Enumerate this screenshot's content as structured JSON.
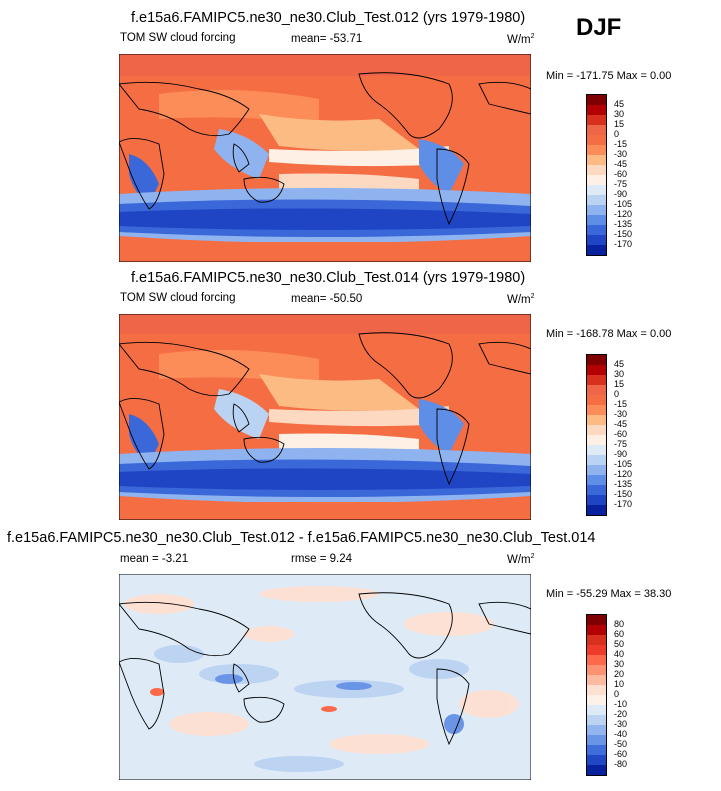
{
  "season": "DJF",
  "panels": [
    {
      "title": "f.e15a6.FAMIPC5.ne30_ne30.Club_Test.012 (yrs 1979-1980)",
      "variable": "TOM SW cloud forcing",
      "mean_text": "mean= -53.71",
      "units_text": "W/m",
      "units_exp": "2",
      "minmax_text": "Min = -171.75 Max =   0.00",
      "colorbar": {
        "labels": [
          "45",
          "30",
          "15",
          "0",
          "-15",
          "-30",
          "-45",
          "-60",
          "-75",
          "-90",
          "-105",
          "-120",
          "-135",
          "-150",
          "-170"
        ],
        "colors": [
          "#7f0000",
          "#b30000",
          "#d7301f",
          "#ef6548",
          "#f46d43",
          "#fc8d59",
          "#fdbb84",
          "#fdd9c2",
          "#fef0e4",
          "#deebf7",
          "#bad3f3",
          "#8fb3ef",
          "#5f8ee6",
          "#3b68d9",
          "#1f45c4",
          "#08219e"
        ]
      }
    },
    {
      "title": "f.e15a6.FAMIPC5.ne30_ne30.Club_Test.014 (yrs 1979-1980)",
      "variable": "TOM SW cloud forcing",
      "mean_text": "mean= -50.50",
      "units_text": "W/m",
      "units_exp": "2",
      "minmax_text": "Min = -168.78 Max =   0.00",
      "colorbar": {
        "labels": [
          "45",
          "30",
          "15",
          "0",
          "-15",
          "-30",
          "-45",
          "-60",
          "-75",
          "-90",
          "-105",
          "-120",
          "-135",
          "-150",
          "-170"
        ],
        "colors": [
          "#7f0000",
          "#b30000",
          "#d7301f",
          "#ef6548",
          "#f46d43",
          "#fc8d59",
          "#fdbb84",
          "#fdd9c2",
          "#fef0e4",
          "#deebf7",
          "#bad3f3",
          "#8fb3ef",
          "#5f8ee6",
          "#3b68d9",
          "#1f45c4",
          "#08219e"
        ]
      }
    },
    {
      "title": "f.e15a6.FAMIPC5.ne30_ne30.Club_Test.012 - f.e15a6.FAMIPC5.ne30_ne30.Club_Test.014",
      "mean_text": "mean =  -3.21",
      "rmse_text": "rmse =   9.24",
      "units_text": "W/m",
      "units_exp": "2",
      "minmax_text": "Min = -55.29 Max =  38.30",
      "colorbar": {
        "labels": [
          "80",
          "60",
          "50",
          "40",
          "30",
          "20",
          "10",
          "0",
          "-10",
          "-20",
          "-30",
          "-40",
          "-50",
          "-60",
          "-80"
        ],
        "colors": [
          "#7f0000",
          "#b30000",
          "#d7301f",
          "#ef3b2c",
          "#fc6a4a",
          "#fc9272",
          "#fcbba1",
          "#fee0d2",
          "#fdf2ea",
          "#deebf7",
          "#bdd3f2",
          "#93b5ee",
          "#6a94e6",
          "#3f6edb",
          "#2148c4",
          "#08219e"
        ]
      }
    }
  ]
}
